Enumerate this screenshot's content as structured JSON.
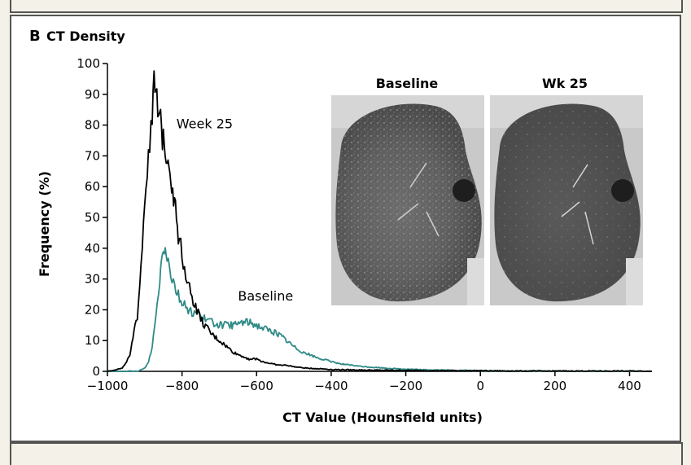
{
  "figure": {
    "panel_letter": "B",
    "panel_title": "CT Density"
  },
  "insets": [
    {
      "title": "Baseline",
      "image": "ct-lung-scan-baseline"
    },
    {
      "title": "Wk 25",
      "image": "ct-lung-scan-week25"
    }
  ],
  "chart_data": {
    "type": "line",
    "title": "CT Density",
    "xlabel": "CT Value (Hounsfield units)",
    "ylabel": "Frequency (%)",
    "xlim": [
      -1000,
      460
    ],
    "ylim": [
      0,
      100
    ],
    "x_ticks": [
      -1000,
      -800,
      -600,
      -400,
      -200,
      0,
      200,
      400
    ],
    "x_tick_labels": [
      "−1000",
      "−800",
      "−600",
      "−400",
      "−200",
      "0",
      "200",
      "400"
    ],
    "y_ticks": [
      0,
      10,
      20,
      30,
      40,
      50,
      60,
      70,
      80,
      90,
      100
    ],
    "grid": false,
    "legend": "inline labels",
    "series": [
      {
        "name": "Week 25",
        "color": "#000000",
        "x": [
          -1000,
          -960,
          -940,
          -920,
          -910,
          -900,
          -890,
          -880,
          -875,
          -870,
          -865,
          -860,
          -855,
          -850,
          -845,
          -840,
          -835,
          -830,
          -825,
          -820,
          -815,
          -810,
          -800,
          -790,
          -780,
          -770,
          -760,
          -750,
          -740,
          -720,
          -700,
          -680,
          -660,
          -640,
          -620,
          -600,
          -580,
          -560,
          -540,
          -520,
          -500,
          -480,
          -460,
          -440,
          -420,
          -400,
          -300,
          -200,
          -100,
          0,
          100,
          200,
          300,
          400,
          460
        ],
        "y": [
          0,
          1,
          5,
          18,
          35,
          55,
          72,
          86,
          91,
          88,
          84,
          80,
          78,
          76,
          74,
          72,
          68,
          64,
          60,
          55,
          50,
          45,
          38,
          32,
          27,
          23,
          20,
          17,
          15,
          12,
          10,
          8,
          6,
          5,
          4,
          4,
          3,
          2.5,
          2,
          2,
          1.5,
          1.2,
          1,
          0.9,
          0.8,
          0.6,
          0.4,
          0.3,
          0.2,
          0.2,
          0.1,
          0.1,
          0.1,
          0.1,
          0
        ]
      },
      {
        "name": "Baseline",
        "color": "#2f8a86",
        "x": [
          -1000,
          -920,
          -900,
          -890,
          -880,
          -870,
          -860,
          -855,
          -850,
          -845,
          -840,
          -830,
          -820,
          -810,
          -800,
          -790,
          -780,
          -770,
          -760,
          -750,
          -740,
          -720,
          -700,
          -680,
          -660,
          -640,
          -620,
          -600,
          -580,
          -560,
          -540,
          -520,
          -500,
          -480,
          -460,
          -440,
          -420,
          -400,
          -380,
          -360,
          -340,
          -320,
          -300,
          -250,
          -200,
          -150,
          -100,
          -50,
          0,
          50,
          100,
          200,
          300,
          400,
          460
        ],
        "y": [
          0,
          0,
          1,
          3,
          8,
          18,
          30,
          36,
          40,
          42,
          38,
          32,
          28,
          25,
          22,
          21,
          20,
          19,
          19,
          18,
          17,
          16,
          15,
          15,
          15,
          16,
          16,
          15,
          14,
          13,
          12,
          10,
          8,
          6.5,
          5.5,
          4.5,
          3.8,
          3.2,
          2.6,
          2.2,
          1.9,
          1.6,
          1.4,
          1,
          0.7,
          0.5,
          0.4,
          0.3,
          0.2,
          0.1,
          0.1,
          0.1,
          0,
          0,
          0
        ]
      }
    ],
    "annotations": [
      {
        "text": "Week 25",
        "x": -815,
        "y": 79,
        "series": "Week 25"
      },
      {
        "text": "Baseline",
        "x": -650,
        "y": 23,
        "series": "Baseline"
      }
    ]
  }
}
